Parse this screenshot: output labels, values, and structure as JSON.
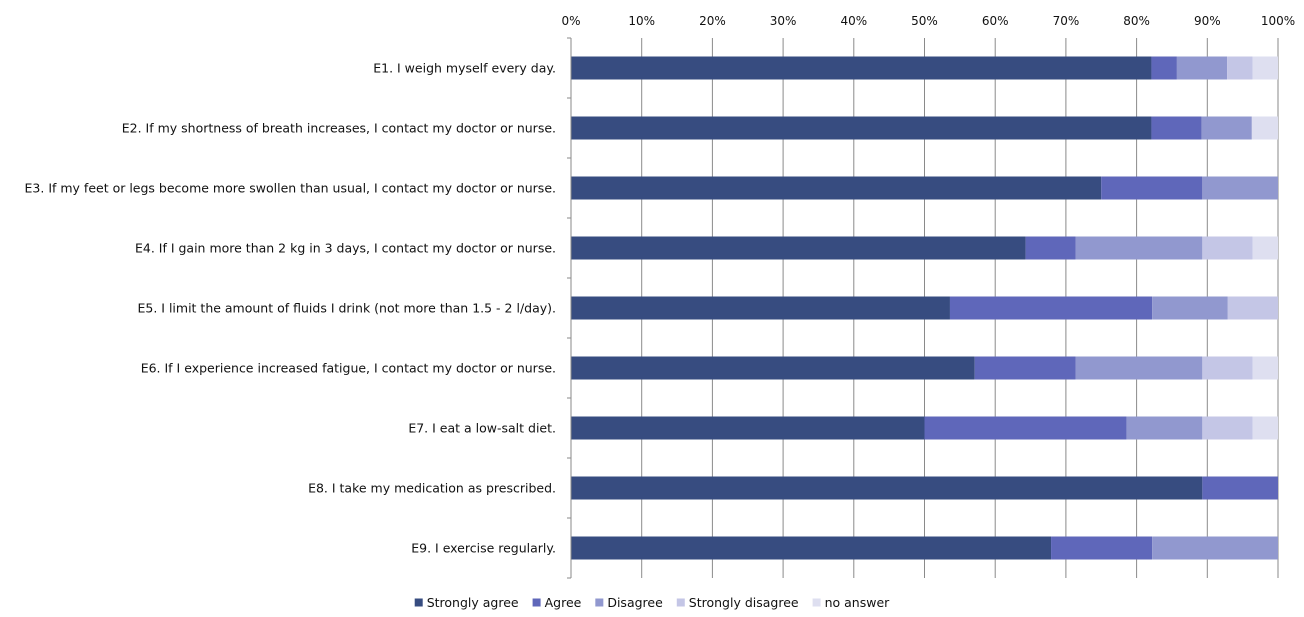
{
  "chart_data": {
    "type": "bar",
    "orientation": "horizontal",
    "stacked": "percent",
    "xlim": [
      0,
      100
    ],
    "x_ticks": [
      "0%",
      "10%",
      "20%",
      "30%",
      "40%",
      "50%",
      "60%",
      "70%",
      "80%",
      "90%",
      "100%"
    ],
    "grid": "vertical",
    "legend_position": "bottom",
    "categories": [
      "E1. I weigh myself every day.",
      "E2. If my shortness of breath increases, I contact my doctor or nurse.",
      "E3. If my feet or legs become more swollen than usual, I contact my doctor or nurse.",
      "E4. If I gain more than 2 kg in 3 days, I contact my doctor or nurse.",
      "E5. I limit the amount of fluids I drink (not more than 1.5 - 2 l/day).",
      "E6. If I experience increased fatigue, I contact my doctor or nurse.",
      "E7. I eat a low-salt diet.",
      "E8. I take my medication as prescribed.",
      "E9. I exercise regularly."
    ],
    "series": [
      {
        "name": "Strongly agree",
        "color": "#374C80",
        "values": [
          82.1,
          82.1,
          75.0,
          64.3,
          53.6,
          57.1,
          50.0,
          89.3,
          67.9
        ]
      },
      {
        "name": "Agree",
        "color": "#5F67BA",
        "values": [
          3.6,
          7.1,
          14.3,
          7.1,
          28.6,
          14.3,
          28.6,
          10.7,
          14.3
        ]
      },
      {
        "name": "Disagree",
        "color": "#9198CF",
        "values": [
          7.1,
          7.1,
          10.7,
          17.9,
          10.7,
          17.9,
          10.7,
          0,
          17.8
        ]
      },
      {
        "name": "Strongly disagree",
        "color": "#C4C6E6",
        "values": [
          3.6,
          0,
          0,
          7.1,
          7.1,
          7.1,
          7.1,
          0,
          0
        ]
      },
      {
        "name": "no answer",
        "color": "#DEDFF0",
        "values": [
          3.6,
          3.7,
          0,
          3.6,
          0,
          3.6,
          3.6,
          0,
          0
        ]
      }
    ]
  }
}
